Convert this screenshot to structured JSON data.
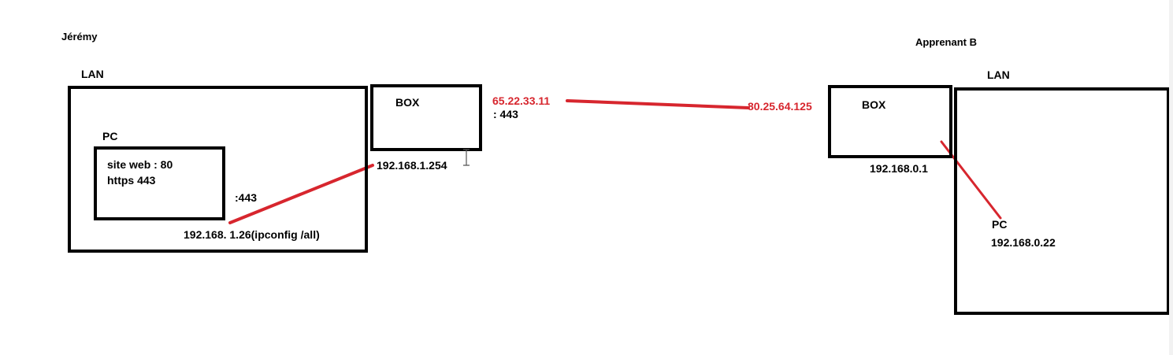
{
  "left_site": {
    "owner": "Jérémy",
    "lan_label": "LAN",
    "pc_label": "PC",
    "service_line1": "site web : 80",
    "service_line2": "https 443",
    "port_label": ":443",
    "pc_ip": "192.168.",
    "pc_ip_suffix": "1.26",
    "pc_ip_note": "(ipconfig /all)",
    "box_label": "BOX",
    "box_lan_ip": "192.168.1.254",
    "box_wan_ip": "65.22.33.11",
    "box_wan_port": ": 443"
  },
  "right_site": {
    "owner": "Apprenant B",
    "lan_label": "LAN",
    "box_label": "BOX",
    "box_wan_ip": "80.25.64.125",
    "box_lan_ip": "192.168.0.1",
    "pc_label": "PC",
    "pc_ip": "192.168.0.22"
  },
  "colors": {
    "line": "#d7262e",
    "border": "#000000"
  }
}
